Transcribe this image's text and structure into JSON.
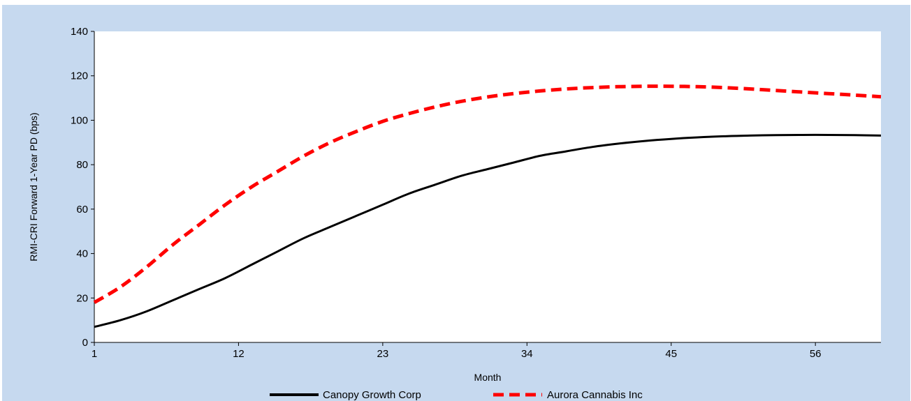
{
  "chart_data": {
    "type": "line",
    "title": "",
    "xlabel": "Month",
    "ylabel": "RMI-CRI Forward 1-Year PD (bps)",
    "xlim": [
      1,
      61
    ],
    "ylim": [
      0,
      140
    ],
    "x_ticks": [
      1,
      12,
      23,
      34,
      45,
      56
    ],
    "y_ticks": [
      0,
      20,
      40,
      60,
      80,
      100,
      120,
      140
    ],
    "grid": false,
    "legend_position": "bottom",
    "background_color": "#c6d9ef",
    "plot_background": "#ffffff",
    "series": [
      {
        "name": "Canopy Growth Corp",
        "color": "#000000",
        "line_style": "solid",
        "x": [
          1,
          3,
          5,
          7,
          9,
          11,
          13,
          15,
          17,
          19,
          21,
          23,
          25,
          27,
          29,
          31,
          33,
          35,
          37,
          39,
          41,
          43,
          45,
          47,
          49,
          51,
          53,
          55,
          57,
          59,
          61
        ],
        "y": [
          7,
          10,
          14,
          19,
          24,
          29,
          35,
          41,
          47,
          52,
          57,
          62,
          67,
          71,
          75,
          78,
          81,
          84,
          86,
          88,
          89.5,
          90.7,
          91.6,
          92.3,
          92.8,
          93.1,
          93.3,
          93.4,
          93.4,
          93.3,
          93.1
        ]
      },
      {
        "name": "Aurora Cannabis Inc",
        "color": "#ff0000",
        "line_style": "dashed",
        "x": [
          1,
          3,
          5,
          7,
          9,
          11,
          13,
          15,
          17,
          19,
          21,
          23,
          25,
          27,
          29,
          31,
          33,
          35,
          37,
          39,
          41,
          43,
          45,
          47,
          49,
          51,
          53,
          55,
          57,
          59,
          61
        ],
        "y": [
          18,
          25,
          34,
          44,
          53,
          62,
          70,
          77,
          84,
          90,
          95,
          99.5,
          103,
          106,
          108.5,
          110.5,
          112,
          113.2,
          114.1,
          114.7,
          115.1,
          115.3,
          115.3,
          115.1,
          114.7,
          114.1,
          113.4,
          112.7,
          112,
          111.3,
          110.6
        ]
      }
    ]
  }
}
